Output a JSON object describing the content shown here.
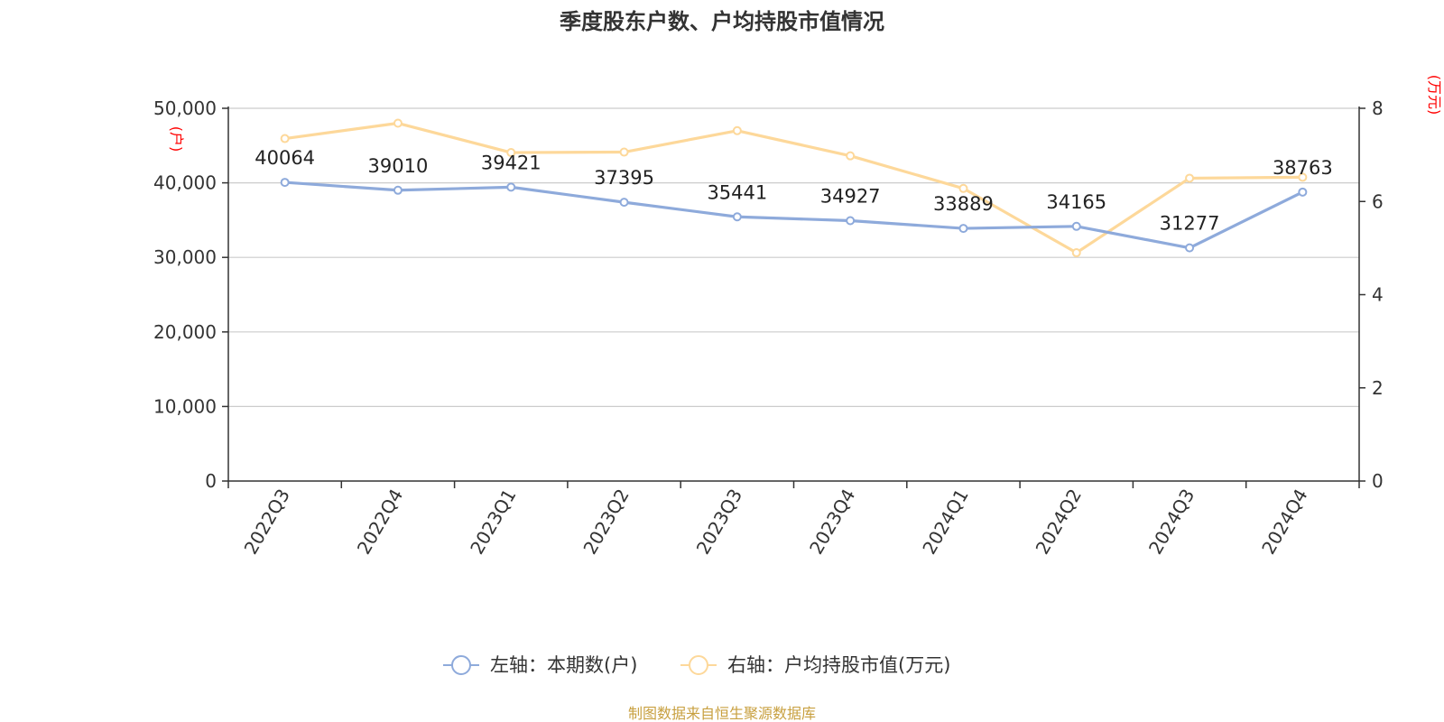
{
  "chart_data": {
    "type": "line",
    "title": "季度股东户数、户均持股市值情况",
    "categories": [
      "2022Q3",
      "2022Q4",
      "2023Q1",
      "2023Q2",
      "2023Q3",
      "2023Q4",
      "2024Q1",
      "2024Q2",
      "2024Q3",
      "2024Q4"
    ],
    "series": [
      {
        "name": "左轴：本期数(户)",
        "axis": "left",
        "color": "#8eaadb",
        "values": [
          40064,
          39010,
          39421,
          37395,
          35441,
          34927,
          33889,
          34165,
          31277,
          38763
        ],
        "labels": [
          "40064",
          "39010",
          "39421",
          "37395",
          "35441",
          "34927",
          "33889",
          "34165",
          "31277",
          "38763"
        ]
      },
      {
        "name": "右轴：户均持股市值(万元)",
        "axis": "right",
        "color": "#fdd89a",
        "values": [
          7.35,
          7.68,
          7.05,
          7.06,
          7.52,
          6.98,
          6.28,
          4.9,
          6.5,
          6.52
        ]
      }
    ],
    "left_axis": {
      "unit": "(户)",
      "ylim": [
        0,
        50000
      ],
      "ticks": [
        0,
        10000,
        20000,
        30000,
        40000,
        50000
      ],
      "tick_labels": [
        "0",
        "10,000",
        "20,000",
        "30,000",
        "40,000",
        "50,000"
      ]
    },
    "right_axis": {
      "unit": "(万元)",
      "ylim": [
        0,
        8
      ],
      "ticks": [
        0,
        2,
        4,
        6,
        8
      ],
      "tick_labels": [
        "0",
        "2",
        "4",
        "6",
        "8"
      ]
    },
    "grid": true,
    "legend_position": "bottom-center",
    "unit_color": "#ff0000"
  },
  "source": {
    "text": "制图数据来自恒生聚源数据库",
    "color": "#c8a040"
  }
}
